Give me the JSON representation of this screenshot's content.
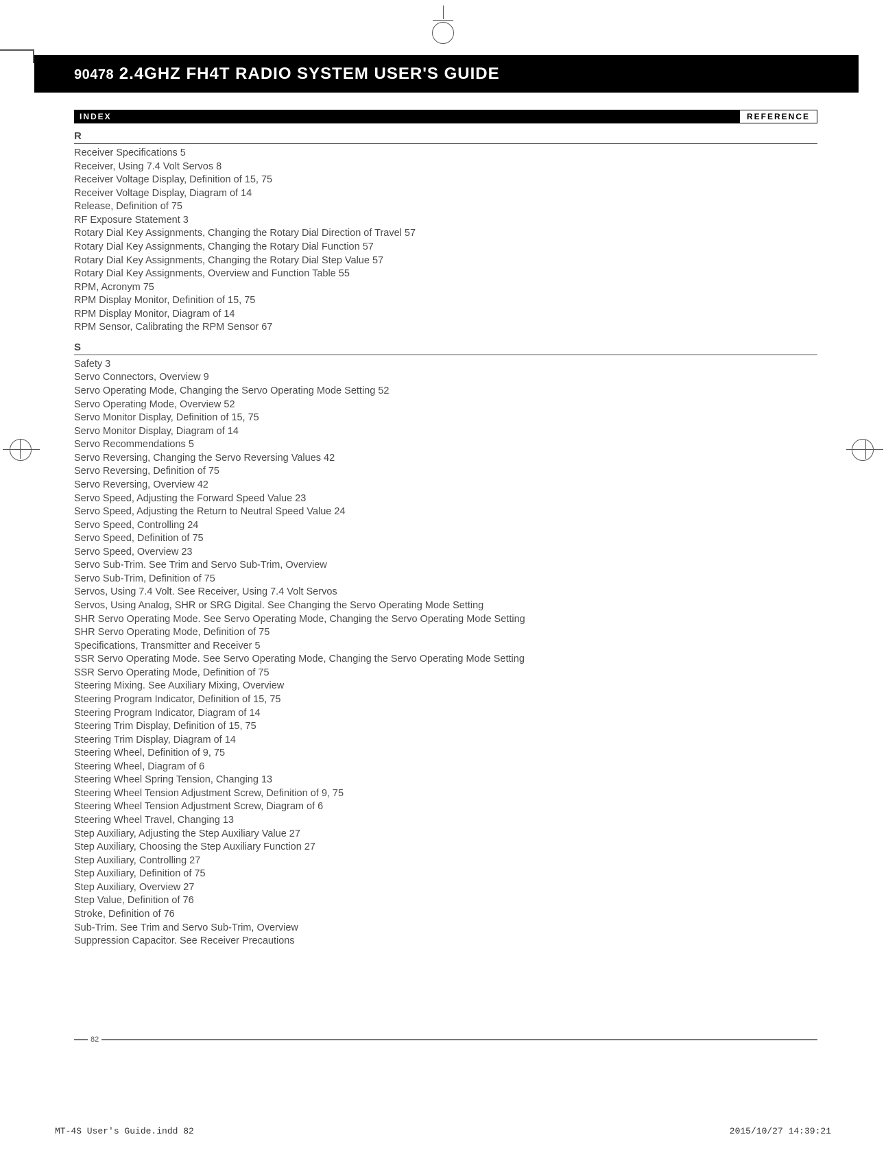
{
  "header": {
    "prefix": "90478",
    "title": "2.4GHZ FH4T RADIO SYSTEM USER'S GUIDE"
  },
  "section_bar": {
    "left": "INDEX",
    "right": "REFERENCE"
  },
  "groups": [
    {
      "letter": "R",
      "entries": [
        "Receiver Specifications  5",
        "Receiver, Using 7.4 Volt Servos  8",
        "Receiver Voltage Display, Definition of  15, 75",
        "Receiver Voltage Display, Diagram of  14",
        "Release, Definition of  75",
        "RF Exposure Statement  3",
        "Rotary Dial Key Assignments, Changing the Rotary Dial Direction of Travel  57",
        "Rotary Dial Key Assignments, Changing the Rotary Dial Function  57",
        "Rotary Dial Key Assignments, Changing the Rotary Dial Step Value  57",
        "Rotary Dial Key Assignments, Overview and Function Table  55",
        "RPM, Acronym  75",
        "RPM Display Monitor, Definition of  15, 75",
        "RPM Display Monitor, Diagram of  14",
        "RPM Sensor, Calibrating the RPM Sensor  67"
      ]
    },
    {
      "letter": "S",
      "entries": [
        "Safety  3",
        "Servo Connectors, Overview  9",
        "Servo Operating Mode, Changing the Servo Operating Mode Setting  52",
        "Servo Operating Mode, Overview  52",
        "Servo Monitor Display, Definition of  15, 75",
        "Servo Monitor Display, Diagram of  14",
        "Servo Recommendations  5",
        "Servo Reversing, Changing the Servo Reversing Values  42",
        "Servo Reversing, Definition of  75",
        "Servo Reversing, Overview  42",
        "Servo Speed, Adjusting the Forward Speed Value  23",
        "Servo Speed, Adjusting the Return to Neutral Speed Value  24",
        "Servo Speed, Controlling  24",
        "Servo Speed, Definition of  75",
        "Servo Speed, Overview  23",
        "Servo Sub-Trim. See Trim and Servo Sub-Trim, Overview",
        "Servo Sub-Trim, Definition of  75",
        "Servos, Using 7.4 Volt. See Receiver, Using 7.4 Volt Servos",
        "Servos, Using Analog, SHR or SRG Digital. See Changing the Servo Operating Mode Setting",
        "SHR Servo Operating Mode. See Servo Operating Mode, Changing the Servo Operating Mode Setting",
        "SHR Servo Operating Mode, Definition of  75",
        "Specifications, Transmitter and Receiver  5",
        "SSR Servo Operating Mode. See Servo Operating Mode, Changing the Servo Operating Mode Setting",
        "SSR Servo Operating Mode, Definition of  75",
        "Steering Mixing. See Auxiliary Mixing, Overview",
        "Steering Program Indicator, Definition of  15, 75",
        "Steering Program Indicator, Diagram of  14",
        "Steering Trim Display, Definition of  15, 75",
        "Steering Trim Display, Diagram of  14",
        "Steering Wheel, Definition of  9, 75",
        "Steering Wheel, Diagram of  6",
        "Steering Wheel Spring Tension, Changing  13",
        "Steering Wheel Tension Adjustment Screw, Definition of  9, 75",
        "Steering Wheel Tension Adjustment Screw, Diagram of  6",
        "Steering Wheel Travel, Changing  13",
        "Step Auxiliary, Adjusting the Step Auxiliary Value  27",
        "Step Auxiliary, Choosing the Step Auxiliary Function  27",
        "Step Auxiliary, Controlling  27",
        "Step Auxiliary, Definition of  75",
        "Step Auxiliary, Overview  27",
        "Step Value, Definition of  76",
        "Stroke, Definition of  76",
        "Sub-Trim. See Trim and Servo Sub-Trim, Overview",
        "Suppression Capacitor. See Receiver Precautions"
      ]
    }
  ],
  "page_number": "82",
  "footer": {
    "left": "MT-4S User's Guide.indd   82",
    "right": "2015/10/27   14:39:21"
  },
  "colors": {
    "text": "#4a4a4a",
    "black": "#000000",
    "white": "#ffffff",
    "grey_line": "#777777"
  }
}
